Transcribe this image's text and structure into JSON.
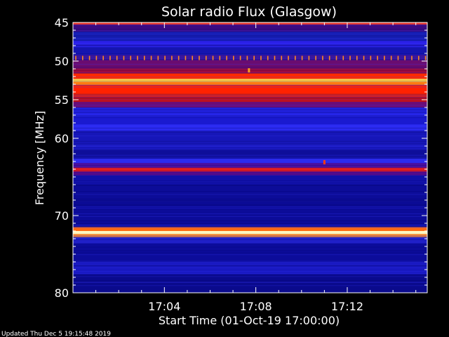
{
  "chart_data": {
    "type": "heatmap",
    "title": "Solar radio Flux (Glasgow)",
    "xlabel": "Start Time (01-Oct-19 17:00:00)",
    "ylabel": "Frequency [MHz]",
    "x_unit": "minutes after 17:00:00",
    "xlim": [
      0,
      15.5
    ],
    "ylim": [
      45,
      80
    ],
    "y_inverted": true,
    "xticks": [
      {
        "value": 4,
        "label": "17:04"
      },
      {
        "value": 8,
        "label": "17:08"
      },
      {
        "value": 12,
        "label": "17:12"
      }
    ],
    "yticks": [
      {
        "value": 45,
        "label": "45"
      },
      {
        "value": 50,
        "label": "50"
      },
      {
        "value": 55,
        "label": "55"
      },
      {
        "value": 60,
        "label": "60"
      },
      {
        "value": 70,
        "label": "70"
      },
      {
        "value": 80,
        "label": "80"
      }
    ],
    "background_color": "#1b1bd6",
    "bands": [
      {
        "from": 45.0,
        "to": 45.3,
        "color": "#e8332a"
      },
      {
        "from": 45.3,
        "to": 46.2,
        "color": "#3b0b82"
      },
      {
        "from": 46.2,
        "to": 47.4,
        "color": "#1720b8"
      },
      {
        "from": 47.4,
        "to": 48.2,
        "color": "#2a20e8"
      },
      {
        "from": 48.2,
        "to": 49.2,
        "color": "#1515b0"
      },
      {
        "from": 49.2,
        "to": 49.9,
        "color": "#3a0f8a"
      },
      {
        "from": 49.9,
        "to": 50.9,
        "color": "#6a0c70"
      },
      {
        "from": 50.9,
        "to": 51.6,
        "color": "#a00a3c"
      },
      {
        "from": 51.6,
        "to": 52.3,
        "color": "#ff2a00"
      },
      {
        "from": 52.3,
        "to": 52.7,
        "color": "#ffd24a"
      },
      {
        "from": 52.7,
        "to": 53.1,
        "color": "#ff7a10"
      },
      {
        "from": 53.1,
        "to": 54.6,
        "color": "#ff2200"
      },
      {
        "from": 54.6,
        "to": 55.3,
        "color": "#c0101a"
      },
      {
        "from": 55.3,
        "to": 56.0,
        "color": "#6a0c78"
      },
      {
        "from": 56.0,
        "to": 57.2,
        "color": "#2424e6"
      },
      {
        "from": 57.2,
        "to": 58.2,
        "color": "#1a1ad0"
      },
      {
        "from": 58.2,
        "to": 59.0,
        "color": "#2a2af0"
      },
      {
        "from": 59.0,
        "to": 61.5,
        "color": "#1616b8"
      },
      {
        "from": 61.5,
        "to": 62.6,
        "color": "#1010a0"
      },
      {
        "from": 62.6,
        "to": 63.2,
        "color": "#2b2bee"
      },
      {
        "from": 63.2,
        "to": 63.8,
        "color": "#4a10a0"
      },
      {
        "from": 63.8,
        "to": 64.3,
        "color": "#ff1a00"
      },
      {
        "from": 64.3,
        "to": 64.8,
        "color": "#5a0c90"
      },
      {
        "from": 64.8,
        "to": 66.0,
        "color": "#1010a8"
      },
      {
        "from": 66.0,
        "to": 71.5,
        "color": "#0c0c98"
      },
      {
        "from": 71.5,
        "to": 72.0,
        "color": "#ff6a10"
      },
      {
        "from": 72.0,
        "to": 72.4,
        "color": "#fff7c0"
      },
      {
        "from": 72.4,
        "to": 72.8,
        "color": "#ff8a20"
      },
      {
        "from": 72.8,
        "to": 73.6,
        "color": "#2020c8"
      },
      {
        "from": 73.6,
        "to": 76.0,
        "color": "#0c0c9a"
      },
      {
        "from": 76.0,
        "to": 77.6,
        "color": "#1818c0"
      },
      {
        "from": 77.6,
        "to": 80.0,
        "color": "#0a0a8c"
      }
    ],
    "periodic_bursts": {
      "freq": 49.6,
      "color": "#ff8a20",
      "interval_min": 0.3
    },
    "point_events": [
      {
        "t": 7.7,
        "freq": 51.2,
        "color": "#ffa020"
      },
      {
        "t": 11.0,
        "freq": 63.1,
        "color": "#ff3a10"
      }
    ]
  },
  "footer": {
    "updated": "Updated Thu Dec  5 19:15:48 2019"
  }
}
